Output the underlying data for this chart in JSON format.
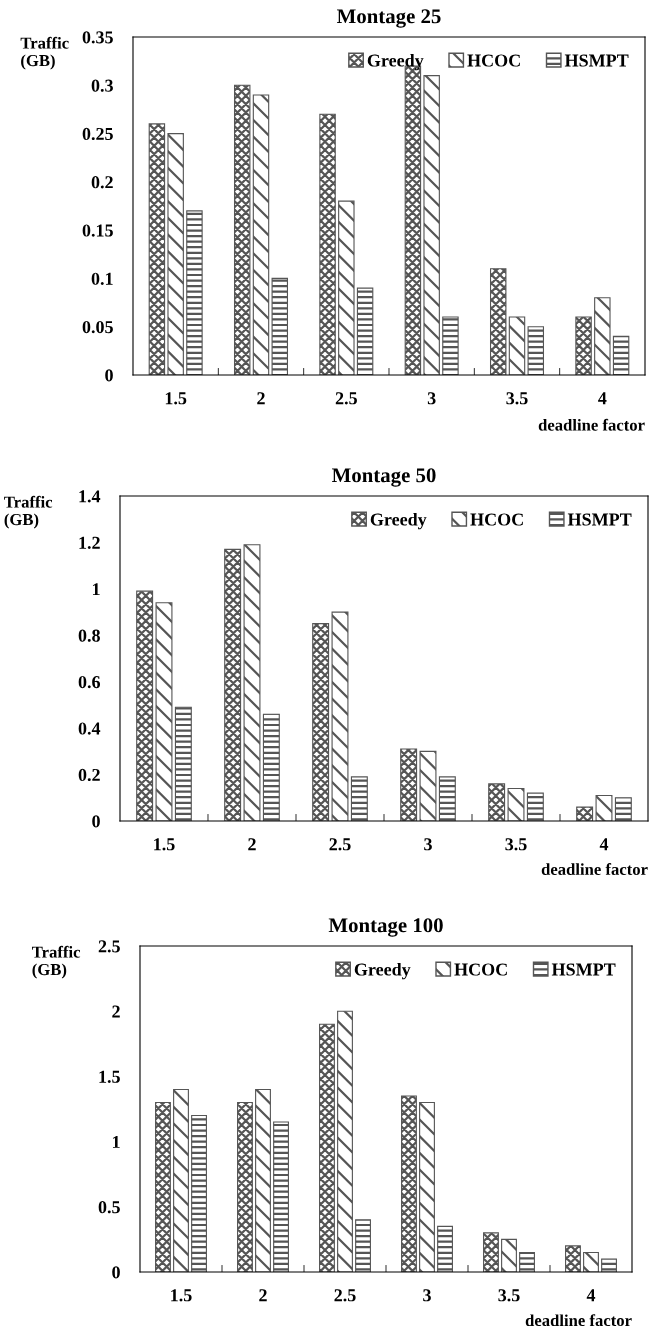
{
  "chart_data": [
    {
      "type": "bar",
      "title": "Montage 25",
      "xlabel": "deadline factor",
      "ylabel": "Traffic\n(GB)",
      "categories": [
        "1.5",
        "2",
        "2.5",
        "3",
        "3.5",
        "4"
      ],
      "series": [
        {
          "name": "Greedy",
          "color": "#555555",
          "values": [
            0.26,
            0.3,
            0.27,
            0.32,
            0.11,
            0.06
          ]
        },
        {
          "name": "HCOC",
          "color": "#555555",
          "values": [
            0.25,
            0.29,
            0.18,
            0.31,
            0.06,
            0.08
          ]
        },
        {
          "name": "HSMPT",
          "color": "#555555",
          "values": [
            0.17,
            0.1,
            0.09,
            0.06,
            0.05,
            0.04
          ]
        }
      ],
      "ylim": [
        0,
        0.35
      ],
      "yticks": [
        0,
        0.05,
        0.1,
        0.15,
        0.2,
        0.25,
        0.3,
        0.35
      ],
      "legend": "top right",
      "grid": false
    },
    {
      "type": "bar",
      "title": "Montage 50",
      "xlabel": "deadline factor",
      "ylabel": "Traffic\n(GB)",
      "categories": [
        "1.5",
        "2",
        "2.5",
        "3",
        "3.5",
        "4"
      ],
      "series": [
        {
          "name": "Greedy",
          "color": "#555555",
          "values": [
            0.99,
            1.17,
            0.85,
            0.31,
            0.16,
            0.06
          ]
        },
        {
          "name": "HCOC",
          "color": "#555555",
          "values": [
            0.94,
            1.19,
            0.9,
            0.3,
            0.14,
            0.11
          ]
        },
        {
          "name": "HSMPT",
          "color": "#555555",
          "values": [
            0.49,
            0.46,
            0.19,
            0.19,
            0.12,
            0.1
          ]
        }
      ],
      "ylim": [
        0,
        1.4
      ],
      "yticks": [
        0,
        0.2,
        0.4,
        0.6,
        0.8,
        1,
        1.2,
        1.4
      ],
      "legend": "top right",
      "grid": false
    },
    {
      "type": "bar",
      "title": "Montage 100",
      "xlabel": "deadline factor",
      "ylabel": "Traffic\n(GB)",
      "categories": [
        "1.5",
        "2",
        "2.5",
        "3",
        "3.5",
        "4"
      ],
      "series": [
        {
          "name": "Greedy",
          "color": "#555555",
          "values": [
            1.3,
            1.3,
            1.9,
            1.35,
            0.3,
            0.2
          ]
        },
        {
          "name": "HCOC",
          "color": "#555555",
          "values": [
            1.4,
            1.4,
            2.0,
            1.3,
            0.25,
            0.15
          ]
        },
        {
          "name": "HSMPT",
          "color": "#555555",
          "values": [
            1.2,
            1.15,
            0.4,
            0.35,
            0.15,
            0.1
          ]
        }
      ],
      "ylim": [
        0,
        2.5
      ],
      "yticks": [
        0,
        0.5,
        1,
        1.5,
        2,
        2.5
      ],
      "legend": "top right",
      "grid": false
    }
  ]
}
